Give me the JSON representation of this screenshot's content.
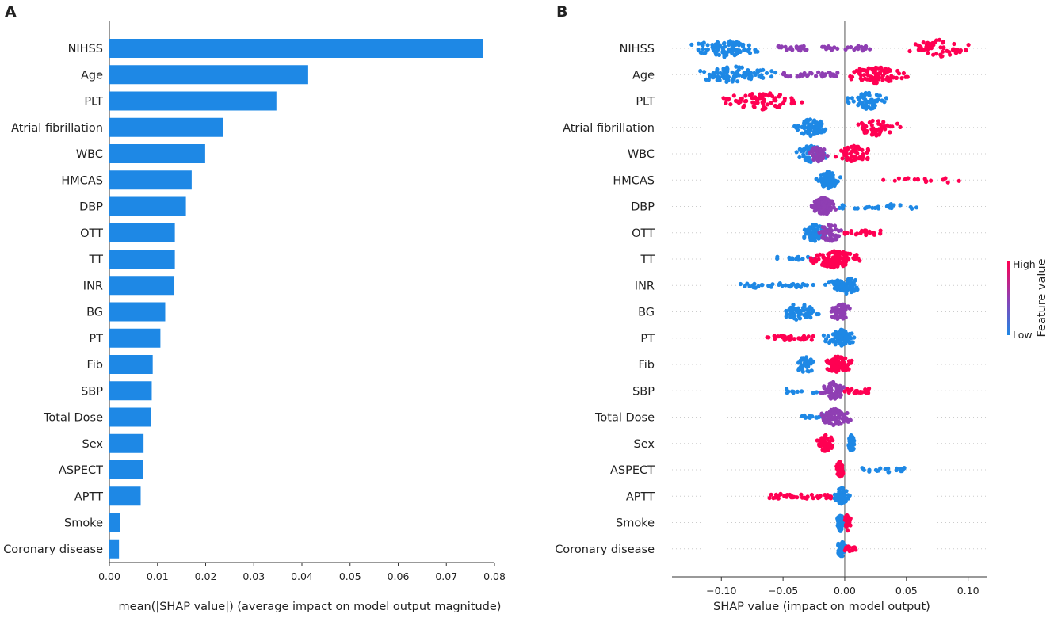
{
  "panels": {
    "a_label": "A",
    "b_label": "B"
  },
  "colors": {
    "bar": "#1e88e5",
    "low": "#1e88e5",
    "mid": "#8f3fb3",
    "high": "#ff0052",
    "axis": "#333333",
    "zero_line": "#555555",
    "grid_dots": "#cccccc"
  },
  "chart_data": [
    {
      "type": "bar",
      "orientation": "horizontal",
      "title": "",
      "categories": [
        "NIHSS",
        "Age",
        "PLT",
        "Atrial fibrillation",
        "WBC",
        "HMCAS",
        "DBP",
        "OTT",
        "TT",
        "INR",
        "BG",
        "PT",
        "Fib",
        "SBP",
        "Total Dose",
        "Sex",
        "ASPECT",
        "APTT",
        "Smoke",
        "Coronary disease"
      ],
      "values": [
        0.0776,
        0.0413,
        0.0347,
        0.0236,
        0.0199,
        0.0171,
        0.0159,
        0.0136,
        0.0136,
        0.0135,
        0.0116,
        0.0106,
        0.009,
        0.0088,
        0.0087,
        0.0071,
        0.007,
        0.0065,
        0.0023,
        0.002
      ],
      "xlabel": "mean(|SHAP value|) (average impact on model output magnitude)",
      "ylabel": "",
      "xlim": [
        0,
        0.08
      ],
      "xticks": [
        "0.00",
        "0.01",
        "0.02",
        "0.03",
        "0.04",
        "0.05",
        "0.06",
        "0.07",
        "0.08"
      ]
    },
    {
      "type": "scatter",
      "subtype": "shap_beeswarm",
      "title": "",
      "categories": [
        "NIHSS",
        "Age",
        "PLT",
        "Atrial fibrillation",
        "WBC",
        "HMCAS",
        "DBP",
        "OTT",
        "TT",
        "INR",
        "BG",
        "PT",
        "Fib",
        "SBP",
        "Total Dose",
        "Sex",
        "ASPECT",
        "APTT",
        "Smoke",
        "Coronary disease"
      ],
      "xlabel": "SHAP value (impact on model output)",
      "xlim": [
        -0.14,
        0.115
      ],
      "xticks": [
        -0.1,
        -0.05,
        0.0,
        0.05,
        0.1
      ],
      "xtick_labels": [
        "−0.10",
        "−0.05",
        "0.00",
        "0.05",
        "0.10"
      ],
      "colorbar": {
        "label": "Feature value",
        "high": "High",
        "low": "Low"
      },
      "series": [
        {
          "feature": "NIHSS",
          "segments": [
            {
              "from": -0.13,
              "to": -0.065,
              "color": "low",
              "count": 90,
              "dense": true
            },
            {
              "from": -0.055,
              "to": -0.03,
              "color": "mid",
              "count": 22,
              "dense": false
            },
            {
              "from": -0.02,
              "to": -0.005,
              "color": "mid",
              "count": 12,
              "dense": false
            },
            {
              "from": 0.0,
              "to": 0.025,
              "color": "mid",
              "count": 16,
              "dense": false
            },
            {
              "from": 0.045,
              "to": 0.108,
              "color": "high",
              "count": 55,
              "dense": true
            }
          ]
        },
        {
          "feature": "Age",
          "segments": [
            {
              "from": -0.13,
              "to": -0.05,
              "color": "low",
              "count": 85,
              "dense": true
            },
            {
              "from": -0.05,
              "to": -0.005,
              "color": "mid",
              "count": 35,
              "dense": false
            },
            {
              "from": -0.005,
              "to": 0.055,
              "color": "high",
              "count": 95,
              "dense": true
            }
          ]
        },
        {
          "feature": "PLT",
          "segments": [
            {
              "from": -0.11,
              "to": -0.025,
              "color": "high",
              "count": 80,
              "dense": true
            },
            {
              "from": -0.005,
              "to": 0.042,
              "color": "low",
              "count": 55,
              "dense": true
            }
          ]
        },
        {
          "feature": "Atrial fibrillation",
          "segments": [
            {
              "from": -0.045,
              "to": -0.01,
              "color": "low",
              "count": 75,
              "dense": true
            },
            {
              "from": 0.003,
              "to": 0.047,
              "color": "high",
              "count": 50,
              "dense": true
            }
          ]
        },
        {
          "feature": "WBC",
          "segments": [
            {
              "from": -0.045,
              "to": -0.01,
              "color": "low",
              "count": 45,
              "dense": true
            },
            {
              "from": -0.03,
              "to": -0.012,
              "color": "mid",
              "count": 40,
              "dense": true
            },
            {
              "from": -0.01,
              "to": 0.027,
              "color": "high",
              "count": 55,
              "dense": true
            }
          ]
        },
        {
          "feature": "HMCAS",
          "segments": [
            {
              "from": -0.025,
              "to": -0.002,
              "color": "low",
              "count": 95,
              "dense": true
            },
            {
              "from": 0.03,
              "to": 0.095,
              "color": "high",
              "count": 16,
              "dense": false
            }
          ]
        },
        {
          "feature": "DBP",
          "segments": [
            {
              "from": -0.03,
              "to": -0.005,
              "color": "mid",
              "count": 90,
              "dense": true
            },
            {
              "from": -0.005,
              "to": 0.063,
              "color": "low",
              "count": 26,
              "dense": false
            }
          ]
        },
        {
          "feature": "OTT",
          "segments": [
            {
              "from": -0.04,
              "to": -0.01,
              "color": "low",
              "count": 60,
              "dense": true
            },
            {
              "from": -0.025,
              "to": 0.002,
              "color": "mid",
              "count": 45,
              "dense": true
            },
            {
              "from": 0.0,
              "to": 0.03,
              "color": "high",
              "count": 25,
              "dense": false
            }
          ]
        },
        {
          "feature": "TT",
          "segments": [
            {
              "from": -0.055,
              "to": -0.025,
              "color": "low",
              "count": 18,
              "dense": false
            },
            {
              "from": -0.035,
              "to": 0.018,
              "color": "high",
              "count": 110,
              "dense": true
            }
          ]
        },
        {
          "feature": "INR",
          "segments": [
            {
              "from": -0.085,
              "to": -0.015,
              "color": "low",
              "count": 40,
              "dense": false
            },
            {
              "from": -0.015,
              "to": 0.017,
              "color": "low",
              "count": 70,
              "dense": true
            }
          ]
        },
        {
          "feature": "BG",
          "segments": [
            {
              "from": -0.058,
              "to": -0.015,
              "color": "low",
              "count": 55,
              "dense": true
            },
            {
              "from": -0.015,
              "to": 0.008,
              "color": "mid",
              "count": 50,
              "dense": true
            }
          ]
        },
        {
          "feature": "PT",
          "segments": [
            {
              "from": -0.063,
              "to": -0.025,
              "color": "high",
              "count": 35,
              "dense": false
            },
            {
              "from": -0.02,
              "to": 0.013,
              "color": "low",
              "count": 75,
              "dense": true
            }
          ]
        },
        {
          "feature": "Fib",
          "segments": [
            {
              "from": -0.043,
              "to": -0.02,
              "color": "low",
              "count": 35,
              "dense": true
            },
            {
              "from": -0.02,
              "to": 0.01,
              "color": "high",
              "count": 75,
              "dense": true
            }
          ]
        },
        {
          "feature": "SBP",
          "segments": [
            {
              "from": -0.048,
              "to": -0.02,
              "color": "low",
              "count": 10,
              "dense": false
            },
            {
              "from": -0.022,
              "to": 0.003,
              "color": "mid",
              "count": 65,
              "dense": true
            },
            {
              "from": 0.0,
              "to": 0.02,
              "color": "high",
              "count": 25,
              "dense": false
            }
          ]
        },
        {
          "feature": "Total Dose",
          "segments": [
            {
              "from": -0.035,
              "to": -0.012,
              "color": "low",
              "count": 20,
              "dense": false
            },
            {
              "from": -0.025,
              "to": 0.01,
              "color": "mid",
              "count": 80,
              "dense": true
            }
          ]
        },
        {
          "feature": "Sex",
          "segments": [
            {
              "from": -0.025,
              "to": -0.005,
              "color": "high",
              "count": 55,
              "dense": true
            },
            {
              "from": 0.002,
              "to": 0.009,
              "color": "low",
              "count": 50,
              "dense": true
            }
          ]
        },
        {
          "feature": "ASPECT",
          "segments": [
            {
              "from": -0.008,
              "to": 0.0,
              "color": "high",
              "count": 60,
              "dense": true
            },
            {
              "from": 0.013,
              "to": 0.05,
              "color": "low",
              "count": 22,
              "dense": false
            }
          ]
        },
        {
          "feature": "APTT",
          "segments": [
            {
              "from": -0.062,
              "to": -0.01,
              "color": "high",
              "count": 40,
              "dense": false
            },
            {
              "from": -0.01,
              "to": 0.005,
              "color": "low",
              "count": 55,
              "dense": true
            }
          ]
        },
        {
          "feature": "Smoke",
          "segments": [
            {
              "from": -0.007,
              "to": 0.0,
              "color": "low",
              "count": 45,
              "dense": true
            },
            {
              "from": -0.002,
              "to": 0.006,
              "color": "high",
              "count": 25,
              "dense": true
            }
          ]
        },
        {
          "feature": "Coronary disease",
          "segments": [
            {
              "from": -0.008,
              "to": 0.002,
              "color": "low",
              "count": 50,
              "dense": true
            },
            {
              "from": 0.0,
              "to": 0.009,
              "color": "high",
              "count": 14,
              "dense": false
            }
          ]
        }
      ]
    }
  ]
}
